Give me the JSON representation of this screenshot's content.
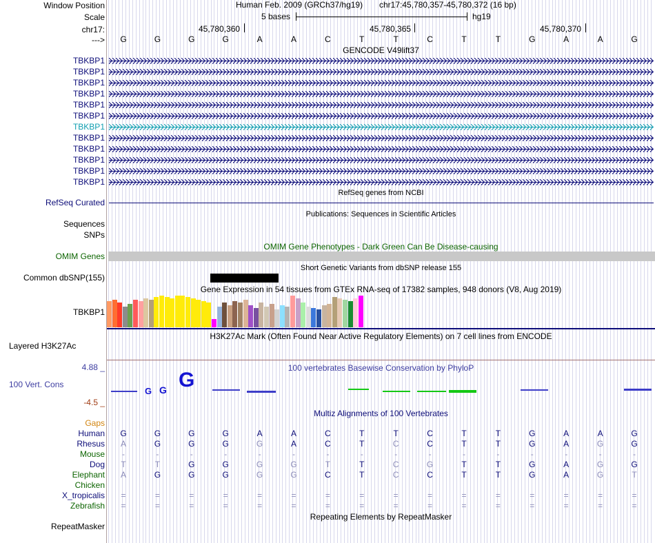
{
  "header": {
    "window_position_label": "Window Position",
    "assembly": "Human Feb. 2009 (GRCh37/hg19)",
    "position": "chr17:45,780,357-45,780,372 (16 bp)",
    "scale_label": "Scale",
    "scale_text": "5 bases",
    "scale_db": "hg19",
    "chrom_label": "chr17:",
    "strand_label": "--->",
    "coord_ticks": [
      "45,780,360",
      "45,780,365",
      "45,780,370"
    ]
  },
  "colors": {
    "gene": "#0c0c78",
    "gene_highlight": "#0f9eb0",
    "omim": "#0c6400",
    "phylo_label": "#3c3ca0",
    "gaps": "#d2840f",
    "alignment_pale": "#8a8ab8"
  },
  "sequence": [
    "G",
    "G",
    "G",
    "G",
    "A",
    "A",
    "C",
    "T",
    "T",
    "C",
    "T",
    "T",
    "G",
    "A",
    "A",
    "G"
  ],
  "tracks": {
    "gencode": {
      "title": "GENCODE V49lift37",
      "rows": [
        "TBKBP1",
        "TBKBP1",
        "TBKBP1",
        "TBKBP1",
        "TBKBP1",
        "TBKBP1",
        "TBKBP1",
        "TBKBP1",
        "TBKBP1",
        "TBKBP1",
        "TBKBP1",
        "TBKBP1"
      ]
    },
    "refseq": {
      "title": "RefSeq genes from NCBI",
      "label": "RefSeq Curated"
    },
    "publications": {
      "title": "Publications: Sequences in Scientific Articles",
      "label1": "Sequences",
      "label2": "SNPs"
    },
    "omim": {
      "title": "OMIM Gene Phenotypes - Dark Green Can Be Disease-causing",
      "label": "OMIM Genes"
    },
    "dbsnp": {
      "title": "Short Genetic Variants from dbSNP release 155",
      "label": "Common dbSNP(155)"
    },
    "gtex": {
      "title": "Gene Expression in 54 tissues from GTEx RNA-seq of 17382 samples, 948 donors (V8, Aug 2019)",
      "label": "TBKBP1"
    },
    "h3k27ac": {
      "title": "H3K27Ac Mark (Often Found Near Active Regulatory Elements) on 7 cell lines from ENCODE",
      "label": "Layered H3K27Ac"
    },
    "phylop": {
      "title": "100 vertebrates Basewise Conservation by PhyloP",
      "label": "100 Vert. Cons",
      "max": "4.88 _",
      "min": "-4.5 _"
    },
    "multiz": {
      "title": "Multiz Alignments of 100 Vertebrates",
      "gaps_label": "Gaps",
      "species": [
        {
          "name": "Human",
          "bases": [
            "G",
            "G",
            "G",
            "G",
            "A",
            "A",
            "C",
            "T",
            "T",
            "C",
            "T",
            "T",
            "G",
            "A",
            "A",
            "G"
          ]
        },
        {
          "name": "Rhesus",
          "bases": [
            "A",
            "G",
            "G",
            "G",
            "G",
            "A",
            "C",
            "T",
            "C",
            "C",
            "T",
            "T",
            "G",
            "A",
            "G",
            "G"
          ]
        },
        {
          "name": "Mouse",
          "bases": [
            "-",
            "-",
            "-",
            "-",
            "-",
            "-",
            "-",
            "-",
            "-",
            "-",
            "-",
            "-",
            "-",
            "-",
            "-",
            "-"
          ]
        },
        {
          "name": "Dog",
          "bases": [
            "T",
            "T",
            "G",
            "G",
            "G",
            "G",
            "T",
            "T",
            "C",
            "G",
            "T",
            "T",
            "G",
            "A",
            "G",
            "G"
          ]
        },
        {
          "name": "Elephant",
          "bases": [
            "A",
            "G",
            "G",
            "G",
            "G",
            "G",
            "C",
            "T",
            "C",
            "C",
            "T",
            "T",
            "G",
            "A",
            "G",
            "T"
          ]
        },
        {
          "name": "Chicken",
          "bases": [
            "",
            "",
            "",
            "",
            "",
            "",
            "",
            "",
            "",
            "",
            "",
            "",
            "",
            "",
            "",
            ""
          ]
        },
        {
          "name": "X_tropicalis",
          "bases": [
            "=",
            "=",
            "=",
            "=",
            "=",
            "=",
            "=",
            "=",
            "=",
            "=",
            "=",
            "=",
            "=",
            "=",
            "=",
            "="
          ]
        },
        {
          "name": "Zebrafish",
          "bases": [
            "=",
            "=",
            "=",
            "=",
            "=",
            "=",
            "=",
            "=",
            "=",
            "=",
            "=",
            "=",
            "=",
            "=",
            "=",
            "="
          ]
        }
      ]
    },
    "repeatmasker": {
      "title": "Repeating Elements by RepeatMasker",
      "label": "RepeatMasker"
    }
  }
}
